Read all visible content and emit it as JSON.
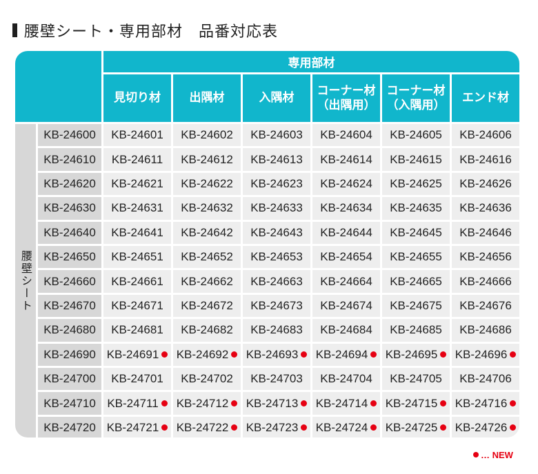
{
  "title": "腰壁シート・専用部材　品番対応表",
  "header": {
    "group_label": "専用部材",
    "columns": [
      {
        "line1": "見切り材",
        "line2": ""
      },
      {
        "line1": "出隅材",
        "line2": ""
      },
      {
        "line1": "入隅材",
        "line2": ""
      },
      {
        "line1": "コーナー材",
        "line2": "（出隅用）"
      },
      {
        "line1": "コーナー材",
        "line2": "（入隅用）"
      },
      {
        "line1": "エンド材",
        "line2": ""
      }
    ]
  },
  "side_label": "腰壁シート",
  "rows": [
    {
      "sheet": "KB-24600",
      "parts": [
        "KB-24601",
        "KB-24602",
        "KB-24603",
        "KB-24604",
        "KB-24605",
        "KB-24606"
      ],
      "is_new": false
    },
    {
      "sheet": "KB-24610",
      "parts": [
        "KB-24611",
        "KB-24612",
        "KB-24613",
        "KB-24614",
        "KB-24615",
        "KB-24616"
      ],
      "is_new": false
    },
    {
      "sheet": "KB-24620",
      "parts": [
        "KB-24621",
        "KB-24622",
        "KB-24623",
        "KB-24624",
        "KB-24625",
        "KB-24626"
      ],
      "is_new": false
    },
    {
      "sheet": "KB-24630",
      "parts": [
        "KB-24631",
        "KB-24632",
        "KB-24633",
        "KB-24634",
        "KB-24635",
        "KB-24636"
      ],
      "is_new": false
    },
    {
      "sheet": "KB-24640",
      "parts": [
        "KB-24641",
        "KB-24642",
        "KB-24643",
        "KB-24644",
        "KB-24645",
        "KB-24646"
      ],
      "is_new": false
    },
    {
      "sheet": "KB-24650",
      "parts": [
        "KB-24651",
        "KB-24652",
        "KB-24653",
        "KB-24654",
        "KB-24655",
        "KB-24656"
      ],
      "is_new": false
    },
    {
      "sheet": "KB-24660",
      "parts": [
        "KB-24661",
        "KB-24662",
        "KB-24663",
        "KB-24664",
        "KB-24665",
        "KB-24666"
      ],
      "is_new": false
    },
    {
      "sheet": "KB-24670",
      "parts": [
        "KB-24671",
        "KB-24672",
        "KB-24673",
        "KB-24674",
        "KB-24675",
        "KB-24676"
      ],
      "is_new": false
    },
    {
      "sheet": "KB-24680",
      "parts": [
        "KB-24681",
        "KB-24682",
        "KB-24683",
        "KB-24684",
        "KB-24685",
        "KB-24686"
      ],
      "is_new": false
    },
    {
      "sheet": "KB-24690",
      "parts": [
        "KB-24691",
        "KB-24692",
        "KB-24693",
        "KB-24694",
        "KB-24695",
        "KB-24696"
      ],
      "is_new": true
    },
    {
      "sheet": "KB-24700",
      "parts": [
        "KB-24701",
        "KB-24702",
        "KB-24703",
        "KB-24704",
        "KB-24705",
        "KB-24706"
      ],
      "is_new": false
    },
    {
      "sheet": "KB-24710",
      "parts": [
        "KB-24711",
        "KB-24712",
        "KB-24713",
        "KB-24714",
        "KB-24715",
        "KB-24716"
      ],
      "is_new": true
    },
    {
      "sheet": "KB-24720",
      "parts": [
        "KB-24721",
        "KB-24722",
        "KB-24723",
        "KB-24724",
        "KB-24725",
        "KB-24726"
      ],
      "is_new": true
    }
  ],
  "legend": {
    "text": "… NEW"
  },
  "colors": {
    "accent": "#11b6cc",
    "new_marker": "#e60012",
    "row_bg": "#eeeeee",
    "sheet_bg": "#d7d7d7"
  }
}
